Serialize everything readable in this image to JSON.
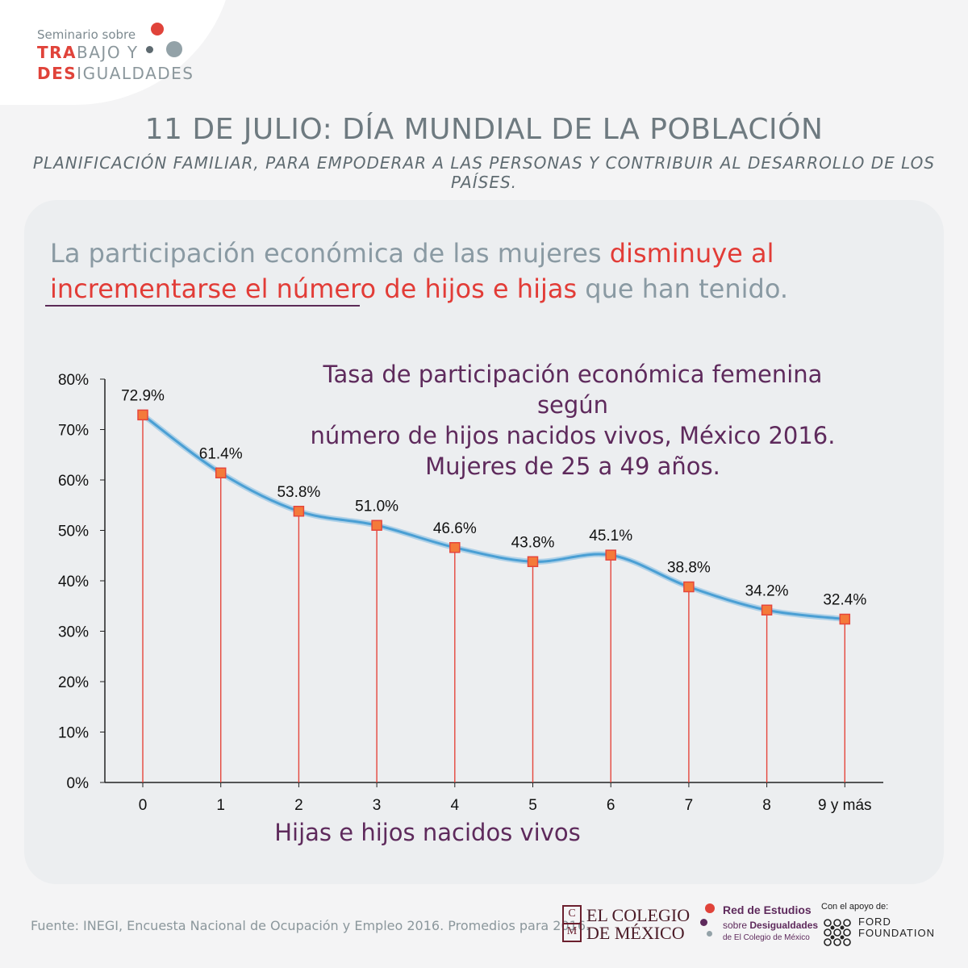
{
  "branding": {
    "pre_label": "Seminario sobre",
    "line1_hl": "TRA",
    "line1_rest": "BAJO Y",
    "line2_hl": "DES",
    "line2_rest": "IGUALDADES",
    "colors": {
      "accent": "#e0433a",
      "grey": "#8b979c",
      "purple": "#5e2a5c"
    }
  },
  "header": {
    "title": "11 DE JULIO: DÍA MUNDIAL DE LA POBLACIÓN",
    "subtitle": "PLANIFICACIÓN FAMILIAR, PARA EMPODERAR A LAS PERSONAS Y CONTRIBUIR AL DESARROLLO DE LOS PAÍSES."
  },
  "lead": {
    "part1": "La participación económica de las mujeres ",
    "part2": "disminuye al incrementarse el número de hijos e hijas",
    "part3": " que han tenido."
  },
  "chart_data": {
    "type": "line",
    "title_lines": [
      "Tasa de participación económica femenina según",
      "número de hijos nacidos vivos, México 2016.",
      "Mujeres de 25 a 49 años."
    ],
    "xlabel": "Hijas e hijos nacidos vivos",
    "ylabel": "",
    "categories": [
      "0",
      "1",
      "2",
      "3",
      "4",
      "5",
      "6",
      "7",
      "8",
      "9 y más"
    ],
    "values": [
      72.9,
      61.4,
      53.8,
      51.0,
      46.6,
      43.8,
      45.1,
      38.8,
      34.2,
      32.4
    ],
    "data_labels": [
      "72.9%",
      "61.4%",
      "53.8%",
      "51.0%",
      "46.6%",
      "43.8%",
      "45.1%",
      "38.8%",
      "34.2%",
      "32.4%"
    ],
    "yticks": [
      0,
      10,
      20,
      30,
      40,
      50,
      60,
      70,
      80
    ],
    "ytick_labels": [
      "0%",
      "10%",
      "20%",
      "30%",
      "40%",
      "50%",
      "60%",
      "70%",
      "80%"
    ],
    "ylim": [
      0,
      80
    ],
    "grid": false,
    "colors": {
      "line": "#4a9fd4",
      "marker": "#f47a3a",
      "drop": "#e5463c"
    }
  },
  "footer": {
    "source": "Fuente: INEGI, Encuesta Nacional de Ocupación y Empleo 2016. Promedios para 2016.",
    "colmex_l1": "EL COLEGIO",
    "colmex_l2": "DE MÉXICO",
    "colmex_box_top": "C",
    "colmex_box_bottom": "M",
    "red_a": "Red de Estudios",
    "red_b1": "sobre ",
    "red_b2": "Desigualdades",
    "red_c": "de El Colegio de México",
    "ford_pre": "Con el apoyo de:",
    "ford_l1": "FORD",
    "ford_l2": "FOUNDATION"
  }
}
